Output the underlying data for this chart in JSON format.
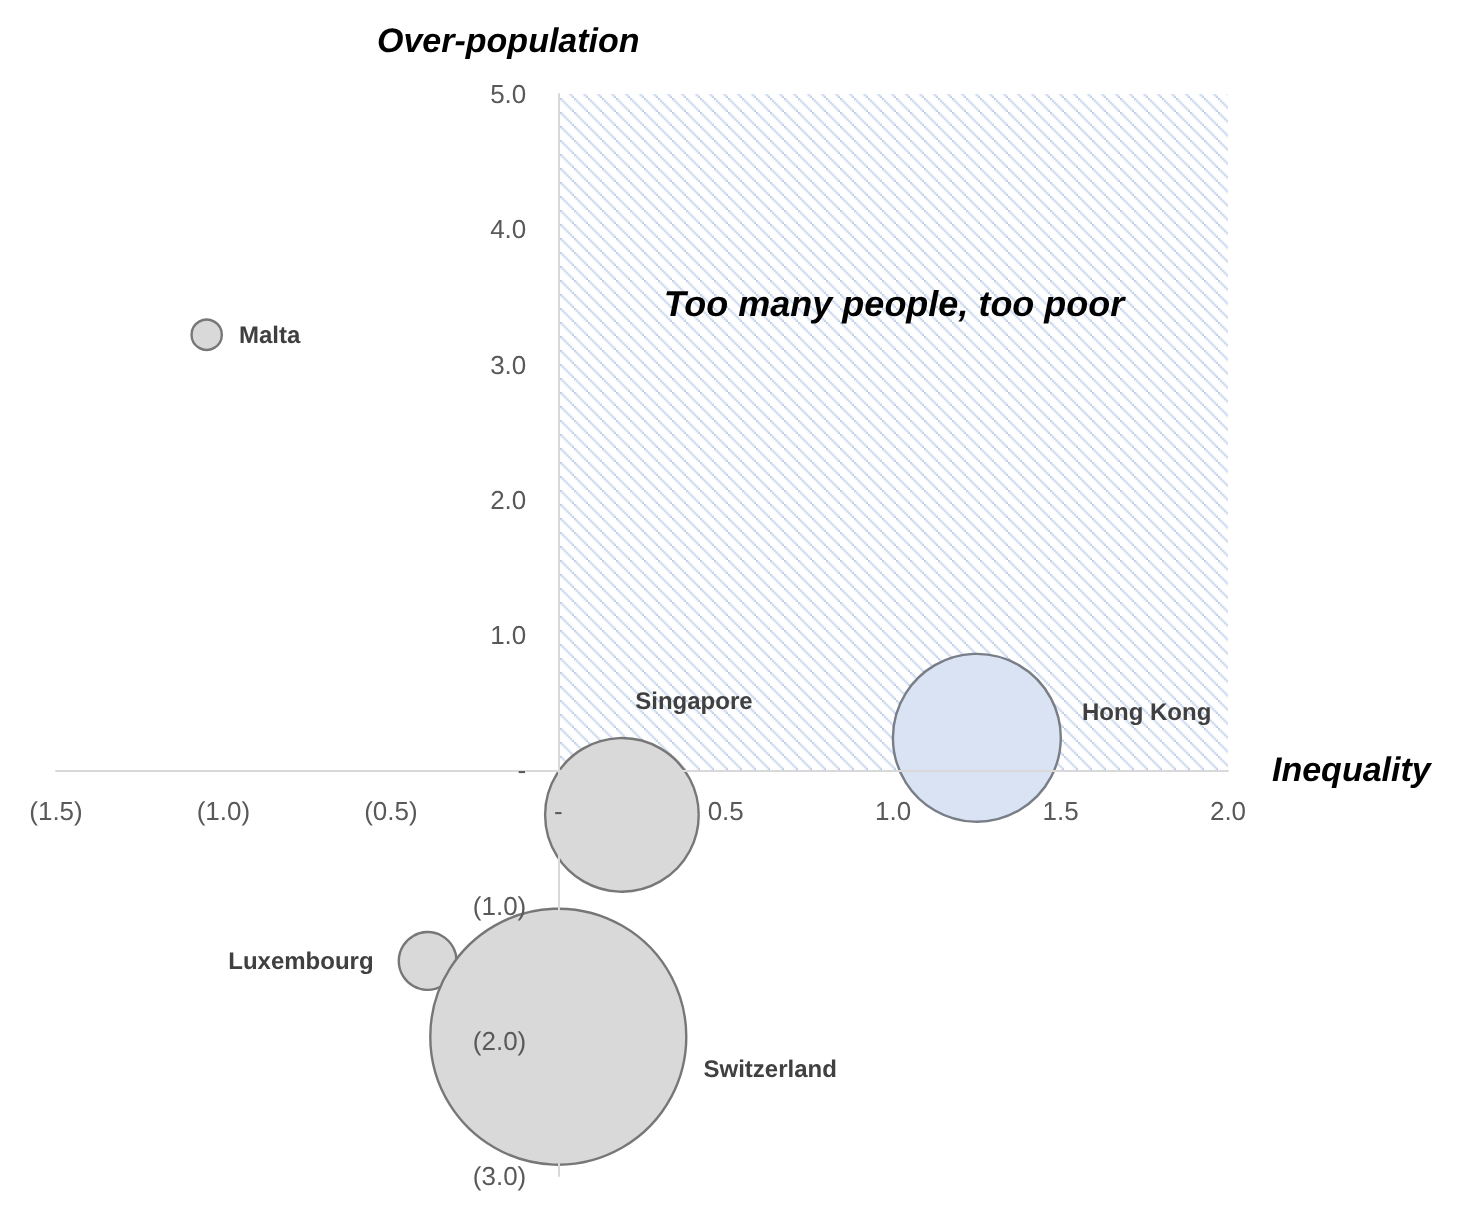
{
  "chart_data": {
    "type": "bubble",
    "xlabel": "Inequality",
    "ylabel": "Over-population",
    "annotations": [
      "Too many people, too poor"
    ],
    "series": [
      {
        "type": "area",
        "color": "#b4c7e7",
        "x": [
          0,
          2
        ],
        "values": [
          5,
          5
        ]
      },
      {
        "name": "Malta",
        "color": "#d9d9d9",
        "x": [
          -1.05
        ],
        "values": [
          3.22
        ],
        "sizes": [
          0.014
        ]
      },
      {
        "name": "Singapore",
        "color": "#d9d9d9",
        "x": [
          0.19
        ],
        "values": [
          -0.33
        ],
        "sizes": [
          0.36
        ]
      },
      {
        "name": "Hong Kong",
        "color": "#dae3f3",
        "x": [
          1.25
        ],
        "values": [
          0.24
        ],
        "sizes": [
          0.43
        ]
      },
      {
        "name": "Luxembourg",
        "color": "#d9d9d9",
        "x": [
          -0.39
        ],
        "values": [
          -1.41
        ],
        "sizes": [
          0.051
        ]
      },
      {
        "name": "Switzerland",
        "color": "#d9d9d9",
        "x": [
          0.0
        ],
        "values": [
          -1.97
        ],
        "sizes": [
          1
        ]
      }
    ],
    "xlim": [
      -1.5,
      2.0
    ],
    "xticks": [
      {
        "value": -1.5,
        "label": "(1.5)"
      },
      {
        "value": -1,
        "label": "(1.0)"
      },
      {
        "value": -0.5,
        "label": "(0.5)"
      },
      {
        "value": 0,
        "label": "-"
      },
      0.5,
      {
        "value": 1,
        "label": "1.0"
      },
      1.5,
      {
        "value": 2,
        "label": "2.0"
      }
    ],
    "ylim": [
      -3,
      5
    ],
    "yticks": [
      {
        "value": -3,
        "label": "(3.0)"
      },
      {
        "value": -2,
        "label": "(2.0)"
      },
      {
        "value": -1,
        "label": "(1.0)"
      },
      {
        "value": 0,
        "label": "-"
      },
      {
        "value": 1,
        "label": "1.0"
      },
      {
        "value": 2,
        "label": "2.0"
      },
      {
        "value": 3,
        "label": "3.0"
      },
      {
        "value": 4,
        "label": "4.0"
      },
      {
        "value": 5,
        "label": "5.0"
      }
    ],
    "grid": false,
    "legend": false
  }
}
